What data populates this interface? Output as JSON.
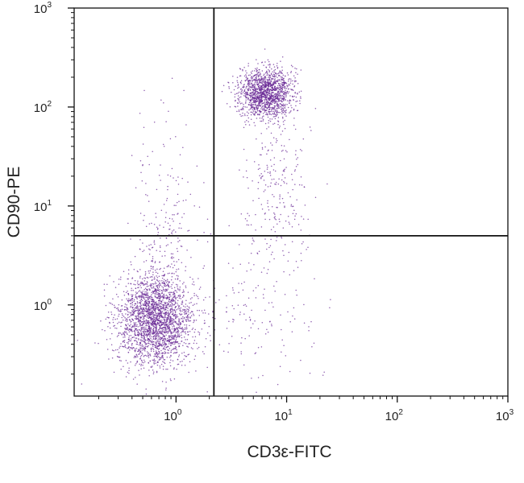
{
  "chart_data": {
    "type": "scatter",
    "title": "",
    "xlabel": "CD3ε-FITC",
    "ylabel": "CD90-PE",
    "xscale": "log",
    "yscale": "log",
    "xlim": [
      0.12,
      1000
    ],
    "ylim": [
      0.12,
      1000
    ],
    "x_ticks": [
      {
        "base": "10",
        "exp": "0",
        "value": 1
      },
      {
        "base": "10",
        "exp": "1",
        "value": 10
      },
      {
        "base": "10",
        "exp": "2",
        "value": 100
      },
      {
        "base": "10",
        "exp": "3",
        "value": 1000
      }
    ],
    "y_ticks": [
      {
        "base": "10",
        "exp": "0",
        "value": 1
      },
      {
        "base": "10",
        "exp": "1",
        "value": 10
      },
      {
        "base": "10",
        "exp": "2",
        "value": 100
      },
      {
        "base": "10",
        "exp": "3",
        "value": 1000
      }
    ],
    "quadrant_gates": {
      "x": 2.2,
      "y": 5.0
    },
    "grid": false,
    "point_color": "#6a2a95",
    "populations": [
      {
        "center": [
          0.65,
          0.7
        ],
        "spread_log10": [
          0.17,
          0.23
        ],
        "count": 2400
      },
      {
        "center": [
          6.5,
          140
        ],
        "spread_log10": [
          0.12,
          0.12
        ],
        "count": 1500
      },
      {
        "center": [
          0.8,
          4.5
        ],
        "spread_log10": [
          0.15,
          0.55
        ],
        "count": 240
      },
      {
        "center": [
          8,
          15
        ],
        "spread_log10": [
          0.15,
          0.45
        ],
        "count": 260
      },
      {
        "center": [
          5,
          0.9
        ],
        "spread_log10": [
          0.3,
          0.35
        ],
        "count": 140
      }
    ]
  }
}
